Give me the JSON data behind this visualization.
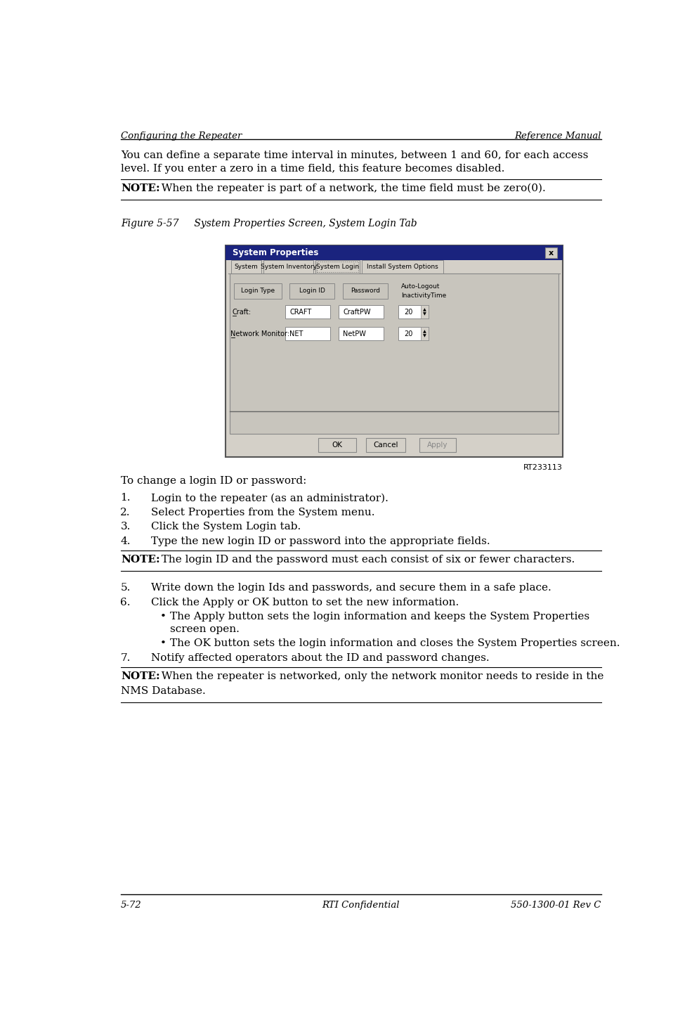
{
  "page_width": 9.85,
  "page_height": 14.65,
  "bg_color": "#ffffff",
  "header_left": "Configuring the Repeater",
  "header_right": "Reference Manual",
  "footer_left": "5-72",
  "footer_center": "RTI Confidential",
  "footer_right": "550-1300-01 Rev C",
  "body_text_1a": "You can define a separate time interval in minutes, between 1 and 60, for each access",
  "body_text_1b": "level. If you enter a zero in a time field, this feature becomes disabled.",
  "note_1_bold": "NOTE:",
  "note_1_text": "  When the repeater is part of a network, the time field must be zero(0).",
  "figure_caption": "Figure 5-57     System Properties Screen, System Login Tab",
  "screenshot_label": "RT233113",
  "change_intro": "To change a login ID or password:",
  "steps": [
    "Login to the repeater (as an administrator).",
    "Select Properties from the System menu.",
    "Click the System Login tab.",
    "Type the new login ID or password into the appropriate fields."
  ],
  "note_2_bold": "NOTE:",
  "note_2_text": "  The login ID and the password must each consist of six or fewer characters.",
  "step5": "Write down the login Ids and passwords, and secure them in a safe place.",
  "step6": "Click the Apply or OK button to set the new information.",
  "bullet1a": "The Apply button sets the login information and keeps the System Properties",
  "bullet1b": "screen open.",
  "bullet2": "The OK button sets the login information and closes the System Properties screen.",
  "step7": "Notify affected operators about the ID and password changes.",
  "note_3_bold": "NOTE:",
  "note_3_text_a": "  When the repeater is networked, only the network monitor needs to reside in the",
  "note_3_text_b": "NMS Database.",
  "text_color": "#000000",
  "header_font_size": 9.5,
  "body_font_size": 11,
  "small_font_size": 9
}
